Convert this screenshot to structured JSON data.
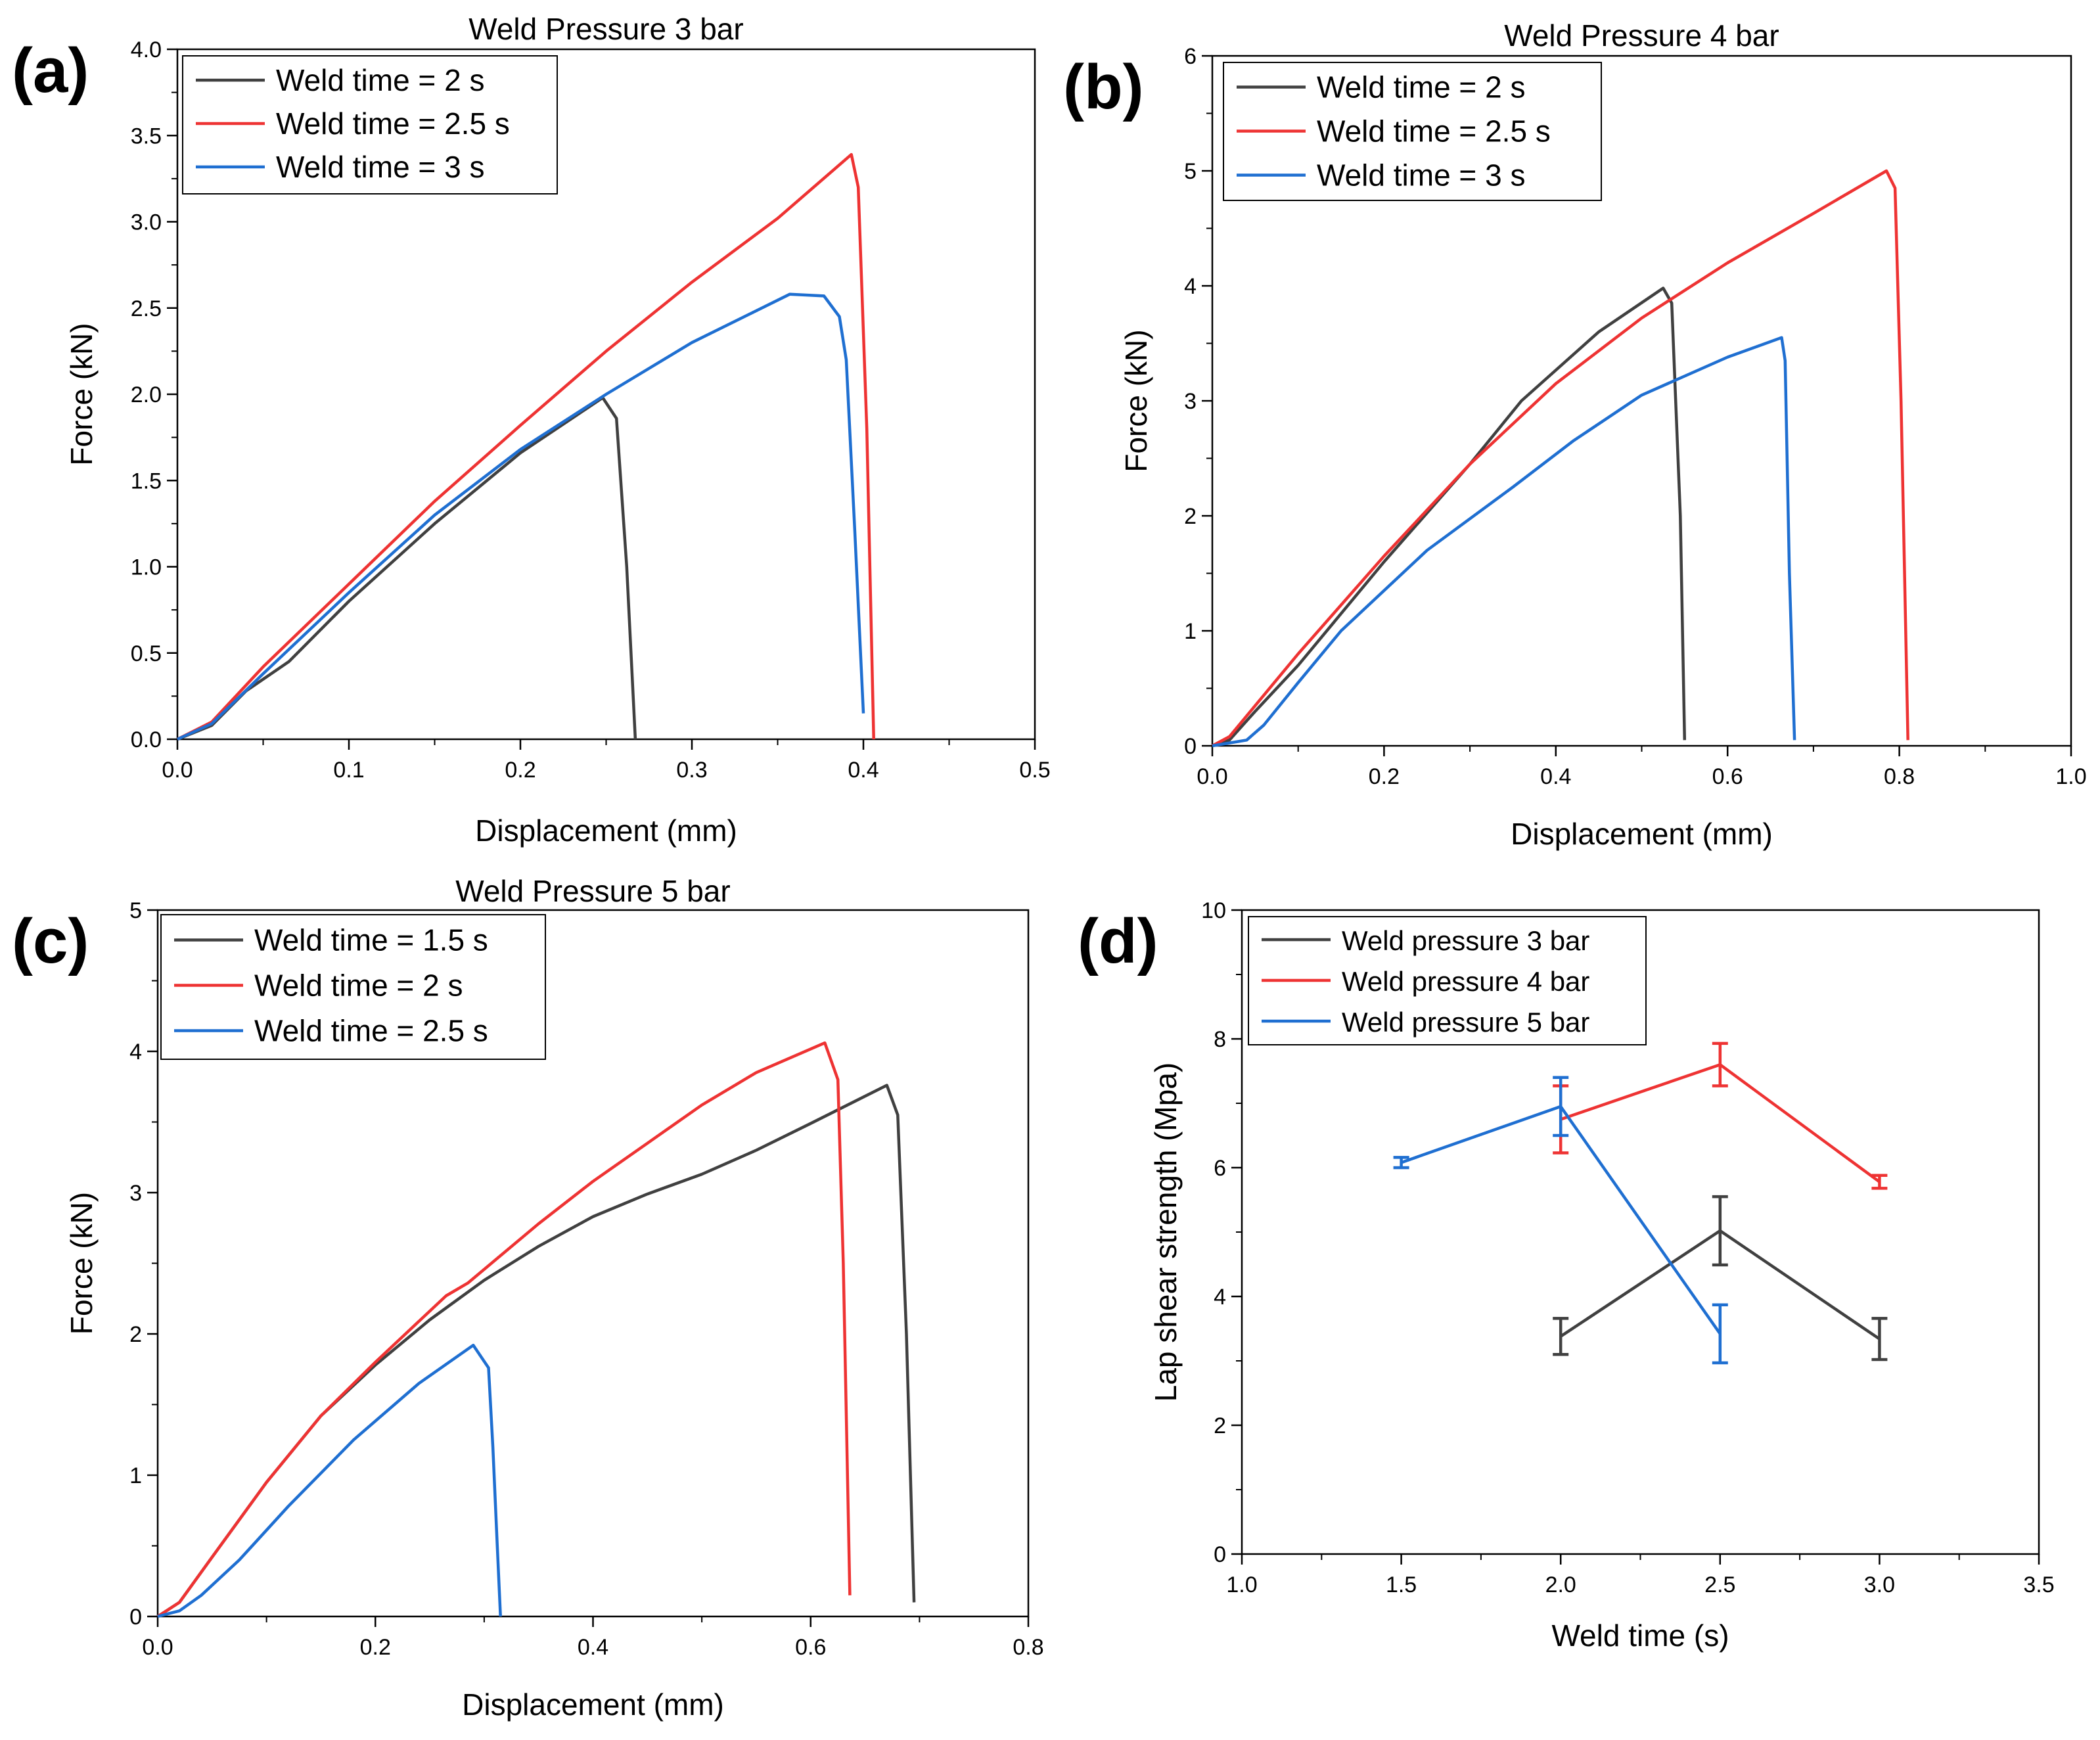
{
  "chart_data": [
    {
      "type": "line",
      "panel_label": "(a)",
      "title": "Weld Pressure 3 bar",
      "xlabel": "Displacement (mm)",
      "ylabel": "Force (kN)",
      "xlim": [
        0.0,
        0.5
      ],
      "ylim": [
        0.0,
        4.0
      ],
      "xticks": [
        0.0,
        0.1,
        0.2,
        0.3,
        0.4,
        0.5
      ],
      "xtick_labels": [
        "0.0",
        "0.1",
        "0.2",
        "0.3",
        "0.4",
        "0.5"
      ],
      "yticks": [
        0.0,
        0.5,
        1.0,
        1.5,
        2.0,
        2.5,
        3.0,
        3.5,
        4.0
      ],
      "ytick_labels": [
        "0.0",
        "0.5",
        "1.0",
        "1.5",
        "2.0",
        "2.5",
        "3.0",
        "3.5",
        "4.0"
      ],
      "legend_position": "top-left",
      "series": [
        {
          "name": "Weld time = 2 s",
          "color": "#404040",
          "points": [
            [
              0,
              0
            ],
            [
              0.02,
              0.08
            ],
            [
              0.04,
              0.28
            ],
            [
              0.065,
              0.45
            ],
            [
              0.1,
              0.8
            ],
            [
              0.15,
              1.25
            ],
            [
              0.2,
              1.66
            ],
            [
              0.248,
              1.98
            ],
            [
              0.256,
              1.86
            ],
            [
              0.262,
              1.0
            ],
            [
              0.267,
              0
            ]
          ]
        },
        {
          "name": "Weld time = 2.5 s",
          "color": "#ee3333",
          "points": [
            [
              0,
              0
            ],
            [
              0.02,
              0.1
            ],
            [
              0.05,
              0.42
            ],
            [
              0.1,
              0.9
            ],
            [
              0.15,
              1.38
            ],
            [
              0.2,
              1.82
            ],
            [
              0.25,
              2.25
            ],
            [
              0.3,
              2.65
            ],
            [
              0.35,
              3.02
            ],
            [
              0.393,
              3.39
            ],
            [
              0.397,
              3.2
            ],
            [
              0.402,
              1.8
            ],
            [
              0.406,
              0
            ]
          ]
        },
        {
          "name": "Weld time = 3 s",
          "color": "#1f6fd1",
          "points": [
            [
              0,
              0
            ],
            [
              0.02,
              0.09
            ],
            [
              0.05,
              0.38
            ],
            [
              0.1,
              0.85
            ],
            [
              0.15,
              1.3
            ],
            [
              0.2,
              1.68
            ],
            [
              0.25,
              2.0
            ],
            [
              0.3,
              2.3
            ],
            [
              0.357,
              2.58
            ],
            [
              0.377,
              2.57
            ],
            [
              0.386,
              2.45
            ],
            [
              0.39,
              2.2
            ],
            [
              0.395,
              1.2
            ],
            [
              0.4,
              0.15
            ]
          ]
        }
      ]
    },
    {
      "type": "line",
      "panel_label": "(b)",
      "title": "Weld Pressure 4 bar",
      "xlabel": "Displacement (mm)",
      "ylabel": "Force (kN)",
      "xlim": [
        0.0,
        1.0
      ],
      "ylim": [
        0,
        6
      ],
      "xticks": [
        0.0,
        0.2,
        0.4,
        0.6,
        0.8,
        1.0
      ],
      "xtick_labels": [
        "0.0",
        "0.2",
        "0.4",
        "0.6",
        "0.8",
        "1.0"
      ],
      "yticks": [
        0,
        1,
        2,
        3,
        4,
        5,
        6
      ],
      "ytick_labels": [
        "0",
        "1",
        "2",
        "3",
        "4",
        "5",
        "6"
      ],
      "legend_position": "top-left",
      "series": [
        {
          "name": "Weld time = 2 s",
          "color": "#404040",
          "points": [
            [
              0,
              0
            ],
            [
              0.02,
              0.05
            ],
            [
              0.05,
              0.3
            ],
            [
              0.1,
              0.7
            ],
            [
              0.2,
              1.6
            ],
            [
              0.3,
              2.45
            ],
            [
              0.36,
              3.0
            ],
            [
              0.45,
              3.6
            ],
            [
              0.525,
              3.98
            ],
            [
              0.535,
              3.85
            ],
            [
              0.545,
              2.0
            ],
            [
              0.55,
              0.05
            ]
          ]
        },
        {
          "name": "Weld time = 2.5 s",
          "color": "#ee3333",
          "points": [
            [
              0,
              0
            ],
            [
              0.02,
              0.08
            ],
            [
              0.05,
              0.35
            ],
            [
              0.1,
              0.8
            ],
            [
              0.2,
              1.65
            ],
            [
              0.3,
              2.45
            ],
            [
              0.4,
              3.15
            ],
            [
              0.5,
              3.72
            ],
            [
              0.6,
              4.2
            ],
            [
              0.7,
              4.63
            ],
            [
              0.785,
              5.0
            ],
            [
              0.795,
              4.85
            ],
            [
              0.802,
              3.0
            ],
            [
              0.81,
              0.05
            ]
          ]
        },
        {
          "name": "Weld time = 3 s",
          "color": "#1f6fd1",
          "points": [
            [
              0,
              0
            ],
            [
              0.04,
              0.05
            ],
            [
              0.06,
              0.18
            ],
            [
              0.1,
              0.55
            ],
            [
              0.15,
              1.0
            ],
            [
              0.25,
              1.7
            ],
            [
              0.35,
              2.25
            ],
            [
              0.42,
              2.65
            ],
            [
              0.5,
              3.05
            ],
            [
              0.6,
              3.38
            ],
            [
              0.663,
              3.55
            ],
            [
              0.667,
              3.35
            ],
            [
              0.672,
              1.5
            ],
            [
              0.678,
              0.05
            ]
          ]
        }
      ]
    },
    {
      "type": "line",
      "panel_label": "(c)",
      "title": "Weld Pressure 5 bar",
      "xlabel": "Displacement (mm)",
      "ylabel": "Force (kN)",
      "xlim": [
        0.0,
        0.8
      ],
      "ylim": [
        0,
        5
      ],
      "xticks": [
        0.0,
        0.2,
        0.4,
        0.6,
        0.8
      ],
      "xtick_labels": [
        "0.0",
        "0.2",
        "0.4",
        "0.6",
        "0.8"
      ],
      "yticks": [
        0,
        1,
        2,
        3,
        4,
        5
      ],
      "ytick_labels": [
        "0",
        "1",
        "2",
        "3",
        "4",
        "5"
      ],
      "legend_position": "top-left",
      "series": [
        {
          "name": "Weld time = 1.5 s",
          "color": "#404040",
          "points": [
            [
              0,
              0
            ],
            [
              0.02,
              0.1
            ],
            [
              0.05,
              0.42
            ],
            [
              0.1,
              0.95
            ],
            [
              0.15,
              1.42
            ],
            [
              0.2,
              1.78
            ],
            [
              0.25,
              2.1
            ],
            [
              0.3,
              2.38
            ],
            [
              0.35,
              2.62
            ],
            [
              0.4,
              2.83
            ],
            [
              0.45,
              2.99
            ],
            [
              0.5,
              3.13
            ],
            [
              0.55,
              3.3
            ],
            [
              0.6,
              3.49
            ],
            [
              0.67,
              3.76
            ],
            [
              0.68,
              3.55
            ],
            [
              0.688,
              2.0
            ],
            [
              0.695,
              0.1
            ]
          ]
        },
        {
          "name": "Weld time = 2 s",
          "color": "#ee3333",
          "points": [
            [
              0,
              0
            ],
            [
              0.02,
              0.1
            ],
            [
              0.05,
              0.42
            ],
            [
              0.1,
              0.95
            ],
            [
              0.15,
              1.42
            ],
            [
              0.2,
              1.8
            ],
            [
              0.265,
              2.27
            ],
            [
              0.285,
              2.36
            ],
            [
              0.35,
              2.78
            ],
            [
              0.4,
              3.08
            ],
            [
              0.45,
              3.35
            ],
            [
              0.5,
              3.62
            ],
            [
              0.55,
              3.85
            ],
            [
              0.613,
              4.06
            ],
            [
              0.625,
              3.8
            ],
            [
              0.63,
              2.5
            ],
            [
              0.636,
              0.15
            ]
          ]
        },
        {
          "name": "Weld time = 2.5 s",
          "color": "#1f6fd1",
          "points": [
            [
              0,
              0
            ],
            [
              0.02,
              0.04
            ],
            [
              0.04,
              0.15
            ],
            [
              0.075,
              0.4
            ],
            [
              0.12,
              0.78
            ],
            [
              0.18,
              1.25
            ],
            [
              0.24,
              1.65
            ],
            [
              0.29,
              1.92
            ],
            [
              0.304,
              1.76
            ],
            [
              0.308,
              1.2
            ],
            [
              0.312,
              0.5
            ],
            [
              0.315,
              0
            ]
          ]
        }
      ]
    },
    {
      "type": "line",
      "panel_label": "(d)",
      "title": "",
      "xlabel": "Weld time (s)",
      "ylabel": "Lap shear strength (Mpa)",
      "xlim": [
        1.0,
        3.5
      ],
      "ylim": [
        0,
        10
      ],
      "xticks": [
        1.0,
        1.5,
        2.0,
        2.5,
        3.0,
        3.5
      ],
      "xtick_labels": [
        "1.0",
        "1.5",
        "2.0",
        "2.5",
        "3.0",
        "3.5"
      ],
      "yticks": [
        0,
        2,
        4,
        6,
        8,
        10
      ],
      "ytick_labels": [
        "0",
        "2",
        "4",
        "6",
        "8",
        "10"
      ],
      "legend_position": "top-left",
      "series": [
        {
          "name": "Weld pressure 3 bar",
          "color": "#404040",
          "points": [
            [
              2.0,
              3.38
            ],
            [
              2.5,
              5.02
            ],
            [
              3.0,
              3.34
            ]
          ],
          "errors": [
            0.28,
            0.53,
            0.32
          ]
        },
        {
          "name": "Weld pressure 4 bar",
          "color": "#ee3333",
          "points": [
            [
              2.0,
              6.75
            ],
            [
              2.5,
              7.6
            ],
            [
              3.0,
              5.78
            ]
          ],
          "errors": [
            0.52,
            0.33,
            0.1
          ]
        },
        {
          "name": "Weld pressure 5 bar",
          "color": "#1f6fd1",
          "points": [
            [
              1.5,
              6.08
            ],
            [
              2.0,
              6.95
            ],
            [
              2.5,
              3.42
            ]
          ],
          "errors": [
            0.08,
            0.45,
            0.45
          ]
        }
      ]
    }
  ]
}
